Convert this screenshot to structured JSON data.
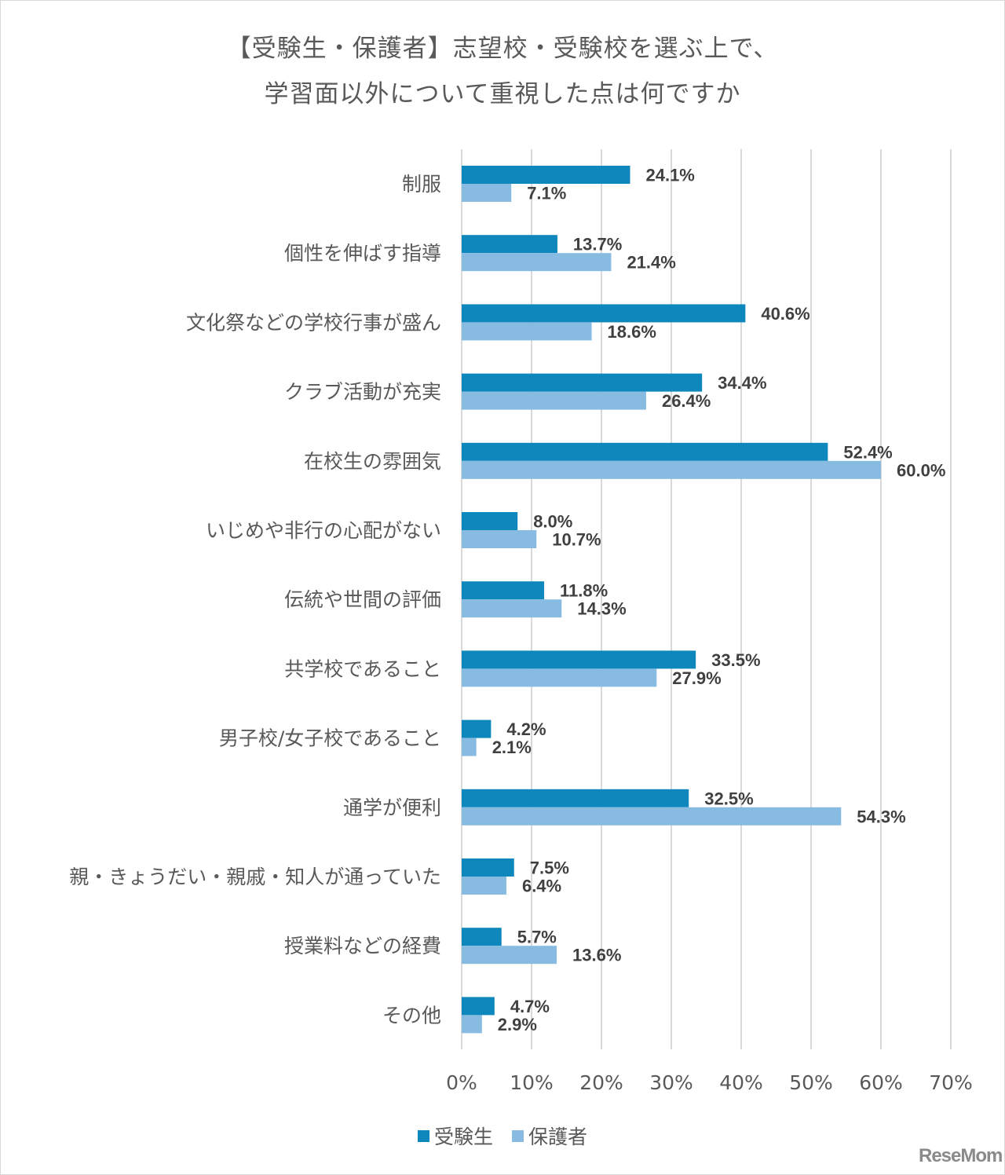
{
  "chart_data": {
    "type": "bar",
    "orientation": "horizontal",
    "title_lines": [
      "【受験生・保護者】志望校・受験校を選ぶ上で、",
      "学習面以外について重視した点は何ですか"
    ],
    "categories": [
      "制服",
      "個性を伸ばす指導",
      "文化祭などの学校行事が盛ん",
      "クラブ活動が充実",
      "在校生の雰囲気",
      "いじめや非行の心配がない",
      "伝統や世間の評価",
      "共学校であること",
      "男子校/女子校であること",
      "通学が便利",
      "親・きょうだい・親戚・知人が通っていた",
      "授業料などの経費",
      "その他"
    ],
    "series": [
      {
        "name": "受験生",
        "color": "#0e88bc",
        "values": [
          24.1,
          13.7,
          40.6,
          34.4,
          52.4,
          8.0,
          11.8,
          33.5,
          4.2,
          32.5,
          7.5,
          5.7,
          4.7
        ]
      },
      {
        "name": "保護者",
        "color": "#88bbe1",
        "values": [
          7.1,
          21.4,
          18.6,
          26.4,
          60.0,
          10.7,
          14.3,
          27.9,
          2.1,
          54.3,
          6.4,
          13.6,
          2.9
        ]
      }
    ],
    "xlim": [
      0,
      70
    ],
    "xticks": [
      "0%",
      "10%",
      "20%",
      "30%",
      "40%",
      "50%",
      "60%",
      "70%"
    ],
    "grid": true,
    "legend_position": "bottom"
  },
  "watermark": "ReseMom"
}
